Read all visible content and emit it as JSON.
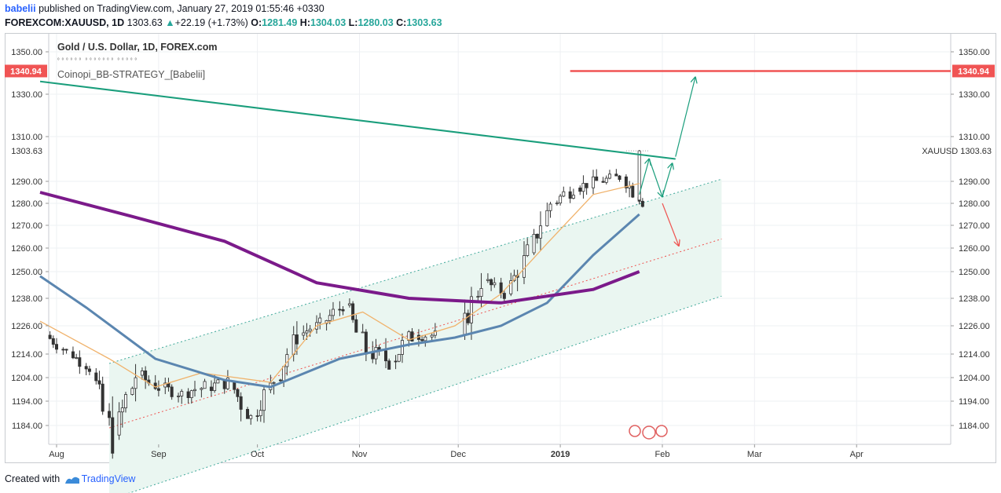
{
  "header": {
    "user": "babelii",
    "published": " published on TradingView.com, January 27, 2019 01:55:46 +0330",
    "symbol": "FOREXCOM:XAUUSD, 1D",
    "last": "1303.63",
    "change_arrow": "▲",
    "change": "+22.19 (+1.73%)",
    "o_label": "O:",
    "o": "1281.49",
    "h_label": "H:",
    "h": "1304.03",
    "l_label": "L:",
    "l": "1280.03",
    "c_label": "C:",
    "c": "1303.63"
  },
  "legend": {
    "title": "Gold / U.S. Dollar, 1D, FOREX.com",
    "subtitle": "ﾟﾟﾟﾟﾟﾟ ﾟﾟﾟﾟﾟﾟﾟ ﾟﾟﾟﾟﾟ",
    "indicator": "Coinopi_BB-STRATEGY_[Babelii]"
  },
  "footer": {
    "created_with": "Created with",
    "brand": "TradingView"
  },
  "colors": {
    "up": "#26a69a",
    "down": "#ef5350",
    "ma_slow": "#7b1a8a",
    "ma_mid": "#5b86b0",
    "ma_fast": "#f0b26b",
    "resistance": "#1a9e7c",
    "level": "#f05454",
    "channel_fill": "#eaf6f1"
  },
  "chart_data": {
    "type": "candlestick",
    "title": "Gold / U.S. Dollar, 1D, FOREX.com",
    "y_ticks": [
      1350.0,
      1330.0,
      1310.0,
      1290.0,
      1280.0,
      1270.0,
      1260.0,
      1250.0,
      1238.0,
      1226.0,
      1214.0,
      1204.0,
      1194.0,
      1184.0
    ],
    "y_tick_labels": [
      "1350.00",
      "1330.00",
      "1310.00",
      "1290.00",
      "1280.00",
      "1270.00",
      "1260.00",
      "1250.00",
      "1238.00",
      "1226.00",
      "1214.00",
      "1204.00",
      "1194.00",
      "1184.00"
    ],
    "x_tick_labels": [
      "Aug",
      "Sep",
      "Oct",
      "Nov",
      "Dec",
      "2019",
      "Feb",
      "Mar",
      "Apr"
    ],
    "price_marker": {
      "label": "1303.63",
      "value": 1303.63
    },
    "symbol_label": "XAUUSD",
    "level_marker": {
      "label": "1340.94",
      "value": 1340.94
    },
    "resistance_line": {
      "start": [
        "2018-07-27",
        1336.0
      ],
      "end": [
        "2019-02-05",
        1300.0
      ]
    },
    "channel": {
      "mid": {
        "start": [
          "2018-08-17",
          1183.0
        ],
        "end": [
          "2019-02-19",
          1264.0
        ]
      },
      "upper": {
        "start": [
          "2018-08-17",
          1210.0
        ],
        "end": [
          "2019-02-19",
          1291.0
        ]
      },
      "lower": {
        "start": [
          "2018-08-17",
          1153.0
        ],
        "end": [
          "2019-02-19",
          1239.0
        ]
      }
    },
    "ma_slow": [
      [
        "2018-07-27",
        1285
      ],
      [
        "2018-08-24",
        1274
      ],
      [
        "2018-09-21",
        1263
      ],
      [
        "2018-10-19",
        1245
      ],
      [
        "2018-11-16",
        1238
      ],
      [
        "2018-12-14",
        1236
      ],
      [
        "2019-01-11",
        1242
      ],
      [
        "2019-01-25",
        1250
      ]
    ],
    "ma_mid": [
      [
        "2018-07-27",
        1248
      ],
      [
        "2018-08-10",
        1234
      ],
      [
        "2018-08-31",
        1212
      ],
      [
        "2018-09-21",
        1203
      ],
      [
        "2018-10-05",
        1200
      ],
      [
        "2018-10-26",
        1212
      ],
      [
        "2018-11-16",
        1218
      ],
      [
        "2018-11-30",
        1221
      ],
      [
        "2018-12-14",
        1226
      ],
      [
        "2018-12-28",
        1236
      ],
      [
        "2019-01-11",
        1257
      ],
      [
        "2019-01-25",
        1275
      ]
    ],
    "ma_fast": [
      [
        "2018-07-27",
        1228
      ],
      [
        "2018-08-17",
        1212
      ],
      [
        "2018-08-31",
        1200
      ],
      [
        "2018-09-14",
        1206
      ],
      [
        "2018-10-05",
        1202
      ],
      [
        "2018-10-19",
        1226
      ],
      [
        "2018-11-02",
        1232
      ],
      [
        "2018-11-16",
        1220
      ],
      [
        "2018-11-30",
        1226
      ],
      [
        "2018-12-14",
        1240
      ],
      [
        "2018-12-28",
        1262
      ],
      [
        "2019-01-11",
        1284
      ],
      [
        "2019-01-25",
        1289
      ]
    ],
    "candles_approx": [
      [
        "2018-07-30",
        1222,
        1224,
        1212,
        1215
      ],
      [
        "2018-08-06",
        1215,
        1218,
        1205,
        1208
      ],
      [
        "2018-08-13",
        1206,
        1208,
        1170,
        1178
      ],
      [
        "2018-08-20",
        1180,
        1212,
        1178,
        1205
      ],
      [
        "2018-08-27",
        1205,
        1214,
        1196,
        1200
      ],
      [
        "2018-09-03",
        1200,
        1204,
        1190,
        1197
      ],
      [
        "2018-09-10",
        1198,
        1210,
        1193,
        1200
      ],
      [
        "2018-09-17",
        1200,
        1212,
        1196,
        1202
      ],
      [
        "2018-09-24",
        1202,
        1206,
        1181,
        1187
      ],
      [
        "2018-10-01",
        1188,
        1206,
        1184,
        1203
      ],
      [
        "2018-10-08",
        1203,
        1228,
        1200,
        1222
      ],
      [
        "2018-10-15",
        1222,
        1234,
        1220,
        1227
      ],
      [
        "2018-10-22",
        1227,
        1240,
        1224,
        1235
      ],
      [
        "2018-10-29",
        1235,
        1238,
        1211,
        1215
      ],
      [
        "2018-11-05",
        1215,
        1232,
        1208,
        1211
      ],
      [
        "2018-11-12",
        1211,
        1225,
        1199,
        1222
      ],
      [
        "2018-11-19",
        1222,
        1230,
        1216,
        1222
      ],
      [
        "2018-12-03",
        1222,
        1250,
        1220,
        1246
      ],
      [
        "2018-12-10",
        1246,
        1252,
        1236,
        1240
      ],
      [
        "2018-12-17",
        1240,
        1266,
        1239,
        1258
      ],
      [
        "2018-12-24",
        1258,
        1284,
        1257,
        1280
      ],
      [
        "2018-12-31",
        1280,
        1298,
        1279,
        1287
      ],
      [
        "2019-01-07",
        1287,
        1297,
        1282,
        1290
      ],
      [
        "2019-01-14",
        1290,
        1297,
        1284,
        1292
      ],
      [
        "2019-01-21",
        1292,
        1294,
        1276,
        1281
      ],
      [
        "2019-01-25",
        1281.49,
        1304.03,
        1280.03,
        1303.63
      ]
    ],
    "arrows_scenario": [
      {
        "type": "up",
        "from": [
          "2019-01-25",
          1284
        ],
        "to": [
          "2019-01-28",
          1300
        ]
      },
      {
        "type": "pullback",
        "from": [
          "2019-01-28",
          1300
        ],
        "to": [
          "2019-02-01",
          1283
        ]
      },
      {
        "type": "up",
        "from": [
          "2019-02-01",
          1283
        ],
        "to": [
          "2019-02-04",
          1298
        ]
      },
      {
        "type": "up_target",
        "from": [
          "2019-02-05",
          1301
        ],
        "to": [
          "2019-02-11",
          1338
        ]
      },
      {
        "type": "down",
        "from": [
          "2019-02-01",
          1280
        ],
        "to": [
          "2019-02-06",
          1261
        ]
      }
    ]
  }
}
